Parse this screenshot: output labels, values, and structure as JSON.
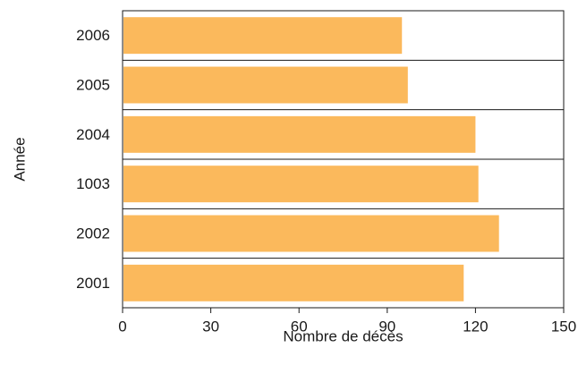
{
  "chart_data": {
    "type": "bar",
    "orientation": "horizontal",
    "categories": [
      "2006",
      "2005",
      "2004",
      "1003",
      "2002",
      "2001"
    ],
    "values": [
      95,
      97,
      120,
      121,
      128,
      116
    ],
    "title": "",
    "xlabel": "Nombre de décès",
    "ylabel": "Année",
    "xlim": [
      0,
      150
    ],
    "x_ticks": [
      "0",
      "30",
      "60",
      "90",
      "120",
      "150"
    ],
    "grid": "horizontal separators between bars",
    "legend": "none",
    "bar_color": "#fbb95c"
  }
}
